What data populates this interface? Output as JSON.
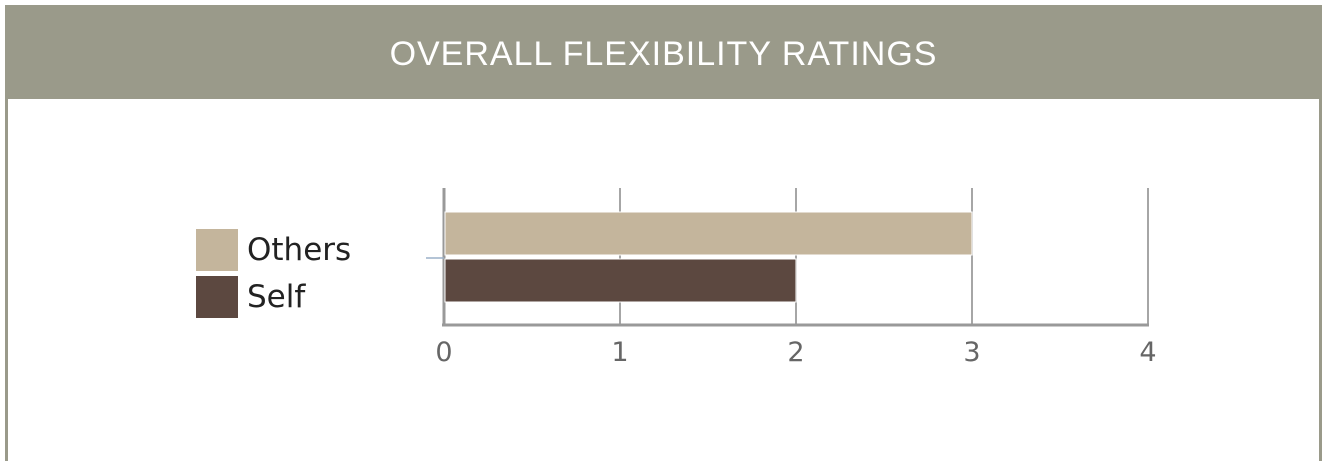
{
  "header": {
    "title": "OVERALL FLEXIBILITY RATINGS"
  },
  "colors": {
    "header_bg": "#9a9a8a",
    "others": "#c4b59c",
    "self": "#5c4840",
    "grid": "#888888"
  },
  "chart_data": {
    "type": "bar",
    "orientation": "horizontal",
    "title": "",
    "xlabel": "",
    "ylabel": "",
    "xlim": [
      0,
      4
    ],
    "ticks": [
      "0",
      "1",
      "2",
      "3",
      "4"
    ],
    "grid": true,
    "legend_position": "left",
    "series": [
      {
        "name": "Others",
        "values": [
          3
        ],
        "color": "#c4b59c"
      },
      {
        "name": "Self",
        "values": [
          2
        ],
        "color": "#5c4840"
      }
    ]
  }
}
